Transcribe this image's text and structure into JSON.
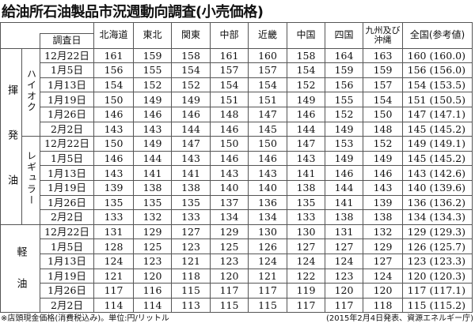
{
  "title": "給油所石油製品市況週動向調査(小売価格)",
  "header": {
    "date_label": "調査日",
    "regions": [
      "北海道",
      "東北",
      "関東",
      "中部",
      "近畿",
      "中国",
      "四国",
      "九州及び沖縄",
      "全国(参考値)"
    ]
  },
  "groups": [
    {
      "label": "揮発油",
      "chars": [
        "揮",
        "発",
        "油"
      ],
      "subgroups": [
        {
          "label": "ハイオク",
          "rows": [
            {
              "date": "12月22日",
              "values": [
                "161",
                "159",
                "158",
                "161",
                "160",
                "158",
                "164",
                "163",
                "160 (160.0)"
              ]
            },
            {
              "date": "1月5日",
              "values": [
                "156",
                "155",
                "154",
                "157",
                "157",
                "154",
                "159",
                "159",
                "156 (156.0)"
              ]
            },
            {
              "date": "1月13日",
              "values": [
                "154",
                "152",
                "152",
                "154",
                "154",
                "152",
                "156",
                "157",
                "154 (153.5)"
              ]
            },
            {
              "date": "1月19日",
              "values": [
                "150",
                "149",
                "149",
                "151",
                "151",
                "149",
                "155",
                "154",
                "151 (150.5)"
              ]
            },
            {
              "date": "1月26日",
              "values": [
                "146",
                "146",
                "146",
                "148",
                "147",
                "146",
                "152",
                "150",
                "147 (147.1)"
              ]
            },
            {
              "date": "2月2日",
              "values": [
                "143",
                "143",
                "144",
                "146",
                "145",
                "144",
                "149",
                "148",
                "145 (145.2)"
              ]
            }
          ]
        },
        {
          "label": "レギュラー",
          "rows": [
            {
              "date": "12月22日",
              "values": [
                "150",
                "149",
                "147",
                "150",
                "150",
                "147",
                "153",
                "152",
                "149 (149.1)"
              ]
            },
            {
              "date": "1月5日",
              "values": [
                "146",
                "144",
                "143",
                "146",
                "146",
                "143",
                "149",
                "149",
                "145 (145.2)"
              ]
            },
            {
              "date": "1月13日",
              "values": [
                "143",
                "141",
                "141",
                "143",
                "143",
                "141",
                "146",
                "146",
                "143 (142.6)"
              ]
            },
            {
              "date": "1月19日",
              "values": [
                "139",
                "138",
                "138",
                "140",
                "140",
                "138",
                "144",
                "143",
                "140 (139.6)"
              ]
            },
            {
              "date": "1月26日",
              "values": [
                "135",
                "135",
                "135",
                "137",
                "136",
                "135",
                "141",
                "139",
                "136 (136.2)"
              ]
            },
            {
              "date": "2月2日",
              "values": [
                "133",
                "132",
                "133",
                "134",
                "134",
                "133",
                "138",
                "138",
                "134 (134.3)"
              ]
            }
          ]
        }
      ]
    },
    {
      "label": "軽油",
      "chars": [
        "軽",
        "油"
      ],
      "subgroups": [
        {
          "label": "",
          "rows": [
            {
              "date": "12月22日",
              "values": [
                "131",
                "129",
                "127",
                "129",
                "130",
                "130",
                "131",
                "132",
                "129 (129.3)"
              ]
            },
            {
              "date": "1月5日",
              "values": [
                "128",
                "125",
                "123",
                "125",
                "126",
                "127",
                "127",
                "129",
                "126 (125.7)"
              ]
            },
            {
              "date": "1月13日",
              "values": [
                "124",
                "123",
                "121",
                "123",
                "124",
                "124",
                "124",
                "127",
                "123 (123.3)"
              ]
            },
            {
              "date": "1月19日",
              "values": [
                "121",
                "120",
                "118",
                "120",
                "121",
                "122",
                "123",
                "124",
                "120 (120.3)"
              ]
            },
            {
              "date": "1月26日",
              "values": [
                "117",
                "116",
                "115",
                "117",
                "117",
                "119",
                "120",
                "120",
                "117 (117.1)"
              ]
            },
            {
              "date": "2月2日",
              "values": [
                "114",
                "114",
                "113",
                "115",
                "115",
                "117",
                "117",
                "118",
                "115 (115.2)"
              ]
            }
          ]
        }
      ]
    }
  ],
  "footer": {
    "note": "※店頭現金価格(消費税込み)。単位:円/リットル",
    "source": "(2015年2月4日発表、資源エネルギー庁)"
  }
}
